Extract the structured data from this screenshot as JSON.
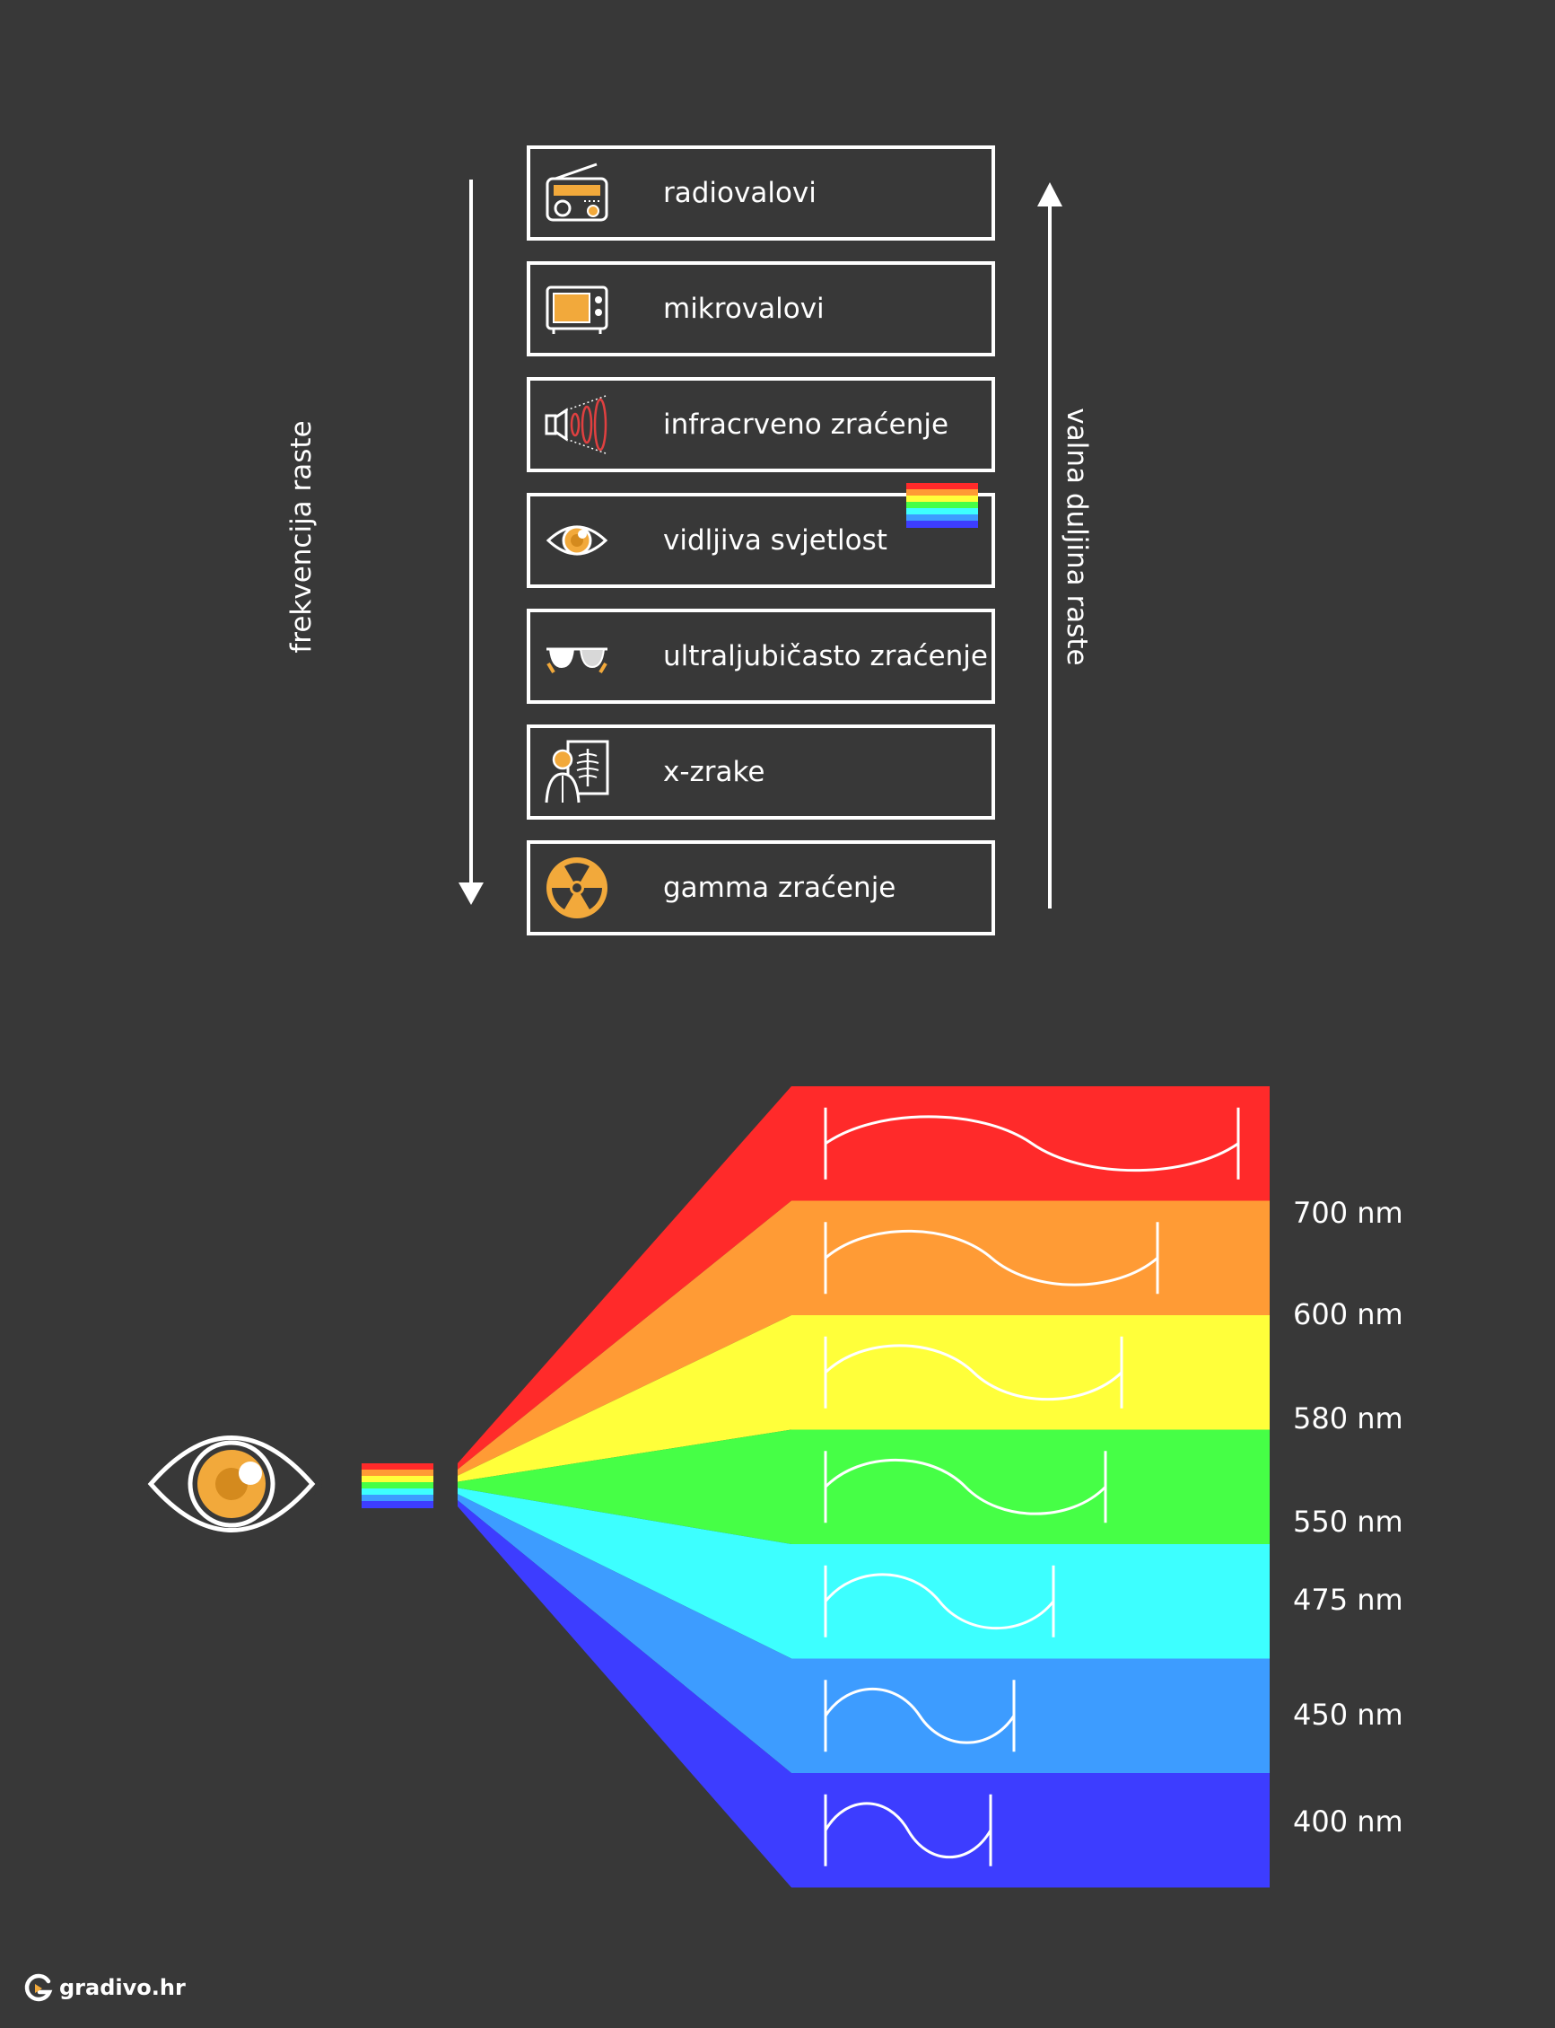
{
  "axis_labels": {
    "frequency": "frekvencija raste",
    "wavelength": "valna duljina raste"
  },
  "spectrum_boxes": [
    {
      "label": "radiovalovi",
      "icon": "radio-icon"
    },
    {
      "label": "mikrovalovi",
      "icon": "microwave-icon"
    },
    {
      "label": "infracrveno zraćenje",
      "icon": "infrared-icon"
    },
    {
      "label": "vidljiva svjetlost",
      "icon": "eye-icon"
    },
    {
      "label": "ultraljubičasto zraćenje",
      "icon": "sunglasses-icon"
    },
    {
      "label": "x-zrake",
      "icon": "xray-icon"
    },
    {
      "label": "gamma zraćenje",
      "icon": "radiation-icon"
    }
  ],
  "visible_light": {
    "bands": [
      {
        "color": "#ff2a2a"
      },
      {
        "color": "#ff9b35"
      },
      {
        "color": "#ffff3a"
      },
      {
        "color": "#46ff46"
      },
      {
        "color": "#3dffff"
      },
      {
        "color": "#3d9cff"
      },
      {
        "color": "#3d3dff"
      }
    ],
    "boundary_labels": [
      "700 nm",
      "600 nm",
      "580 nm",
      "550 nm",
      "475 nm",
      "450 nm",
      "400 nm"
    ]
  },
  "colors": {
    "background": "#383838",
    "accent": "#f2a93b",
    "stroke": "#ffffff"
  },
  "brand": "gradivo.hr"
}
